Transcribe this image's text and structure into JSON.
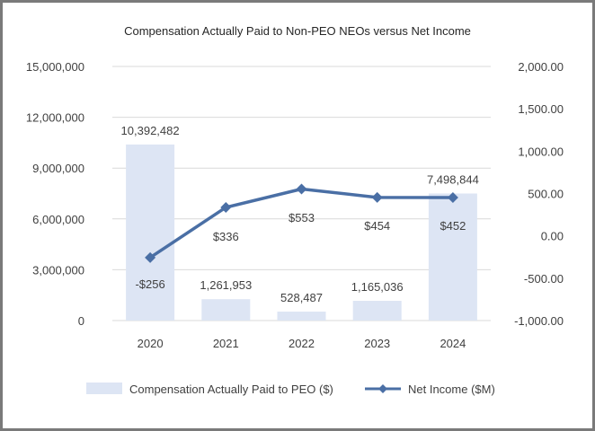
{
  "chart_data": {
    "type": "bar+line",
    "title": "Compensation Actually Paid to Non-PEO NEOs versus Net Income",
    "categories": [
      "2020",
      "2021",
      "2022",
      "2023",
      "2024"
    ],
    "series": [
      {
        "name": "Compensation Actually Paid to PEO ($)",
        "type": "bar",
        "axis": "left",
        "color": "#dde5f4",
        "values": [
          10392482,
          1261953,
          528487,
          1165036,
          7498844
        ],
        "labels": [
          "10,392,482",
          "1,261,953",
          "528,487",
          "1,165,036",
          "7,498,844"
        ]
      },
      {
        "name": "Net Income ($M)",
        "type": "line",
        "axis": "right",
        "color": "#4a6fa5",
        "values": [
          -256,
          336,
          553,
          454,
          452
        ],
        "labels": [
          "-$256",
          "$336",
          "$553",
          "$454",
          "$452"
        ]
      }
    ],
    "left_axis": {
      "ylim": [
        0,
        15000000
      ],
      "ticks": [
        0,
        3000000,
        6000000,
        9000000,
        12000000,
        15000000
      ],
      "tick_labels": [
        "0",
        "3,000,000",
        "6,000,000",
        "9,000,000",
        "12,000,000",
        "15,000,000"
      ]
    },
    "right_axis": {
      "ylim": [
        -1000,
        2000
      ],
      "ticks": [
        -1000,
        -500,
        0,
        500,
        1000,
        1500,
        2000
      ],
      "tick_labels": [
        "-1,000.00",
        "-500.00",
        "0.00",
        "500.00",
        "1,000.00",
        "1,500.00",
        "2,000.00"
      ]
    },
    "grid": true,
    "legend": "bottom"
  }
}
